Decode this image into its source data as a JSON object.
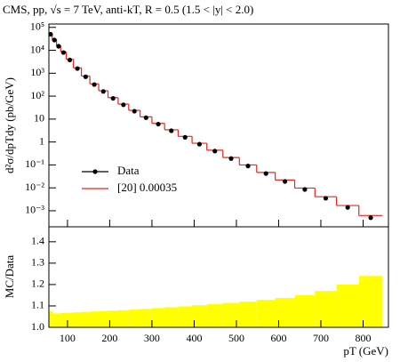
{
  "chart_data": {
    "type": "histogram",
    "title": "CMS, pp, √s = 7 TeV, anti-kT, R = 0.5 (1.5 < |y| < 2.0)",
    "xlabel": "pT (GeV)",
    "ylabel": "d²σ/dpTdy (pb/GeV)",
    "log_y": true,
    "bins": [
      56,
      64,
      74,
      84,
      97,
      114,
      133,
      153,
      174,
      196,
      220,
      245,
      272,
      300,
      330,
      362,
      395,
      430,
      468,
      507,
      548,
      592,
      638,
      686,
      737,
      790,
      846
    ],
    "series": [
      {
        "name": "Data",
        "color": "#000000",
        "values": [
          50000,
          28000,
          15000,
          8000,
          3800,
          1600,
          700,
          320,
          160,
          80,
          42,
          22,
          11.5,
          6,
          3.1,
          1.6,
          0.8,
          0.4,
          0.19,
          0.09,
          0.042,
          0.019,
          0.0085,
          0.0035,
          0.0014,
          0.0005
        ]
      },
      {
        "name": "[20] 0.00035",
        "color": "#e8261c",
        "values": [
          53750,
          29820,
          15975,
          8536,
          4058,
          1712,
          750,
          344,
          172,
          86,
          45,
          24,
          12.5,
          6.5,
          3.4,
          1.76,
          0.88,
          0.44,
          0.21,
          0.1,
          0.047,
          0.022,
          0.0098,
          0.0041,
          0.0017,
          0.00062
        ]
      }
    ],
    "xlim": [
      56,
      860
    ],
    "xticks": [
      100,
      200,
      300,
      400,
      500,
      600,
      700,
      800
    ],
    "ylim": [
      0.0002,
      140000
    ],
    "yticks": [
      {
        "value": 100000,
        "label": "10⁵"
      },
      {
        "value": 10000,
        "label": "10⁴"
      },
      {
        "value": 1000,
        "label": "10³"
      },
      {
        "value": 100,
        "label": "10²"
      },
      10,
      1,
      {
        "value": 0.1,
        "label": "10⁻¹"
      },
      {
        "value": 0.01,
        "label": "10⁻²"
      },
      {
        "value": 0.001,
        "label": "10⁻³"
      }
    ],
    "ratio": {
      "ylabel": "MC/Data",
      "color": "#ffff00",
      "values": [
        1.075,
        1.065,
        1.065,
        1.067,
        1.068,
        1.07,
        1.072,
        1.074,
        1.076,
        1.078,
        1.08,
        1.083,
        1.086,
        1.09,
        1.094,
        1.098,
        1.103,
        1.108,
        1.114,
        1.12,
        1.128,
        1.137,
        1.15,
        1.17,
        1.2,
        1.24
      ],
      "ylim": [
        1.0,
        1.47
      ],
      "yticks": [
        {
          "value": 1.0,
          "label": "1.0"
        },
        1.1,
        1.2,
        1.3,
        1.4
      ]
    }
  }
}
